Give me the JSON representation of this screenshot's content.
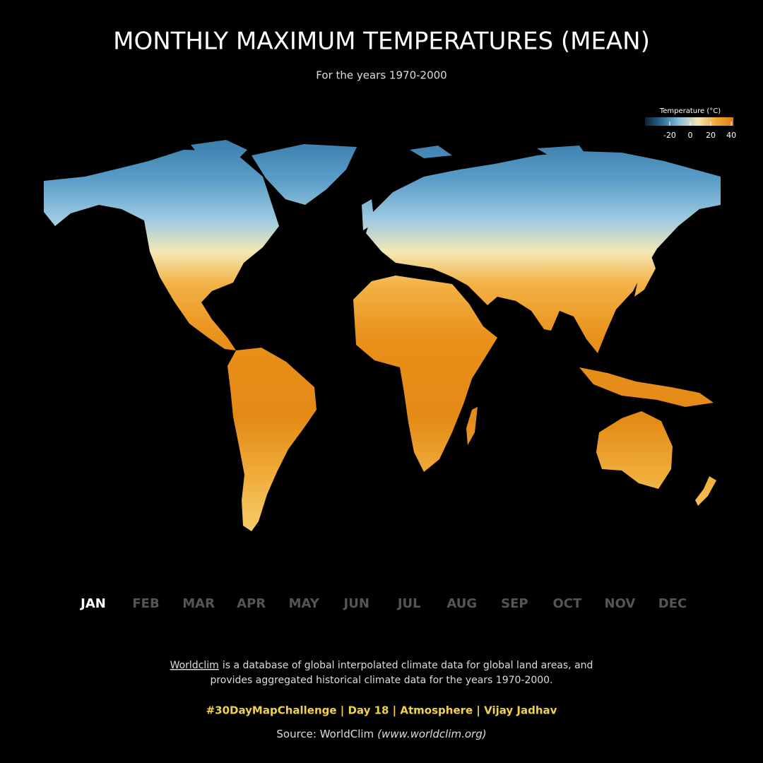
{
  "header": {
    "title": "MONTHLY MAXIMUM TEMPERATURES (MEAN)",
    "subtitle": "For the years 1970-2000"
  },
  "legend": {
    "title": "Temperature (°C)",
    "range": [
      -44,
      42
    ],
    "ticks": [
      -20,
      0,
      20,
      40
    ],
    "colors": [
      "#0b2233",
      "#2f6f9a",
      "#8fc3dd",
      "#f3e6b0",
      "#f2a93a",
      "#e07a10"
    ]
  },
  "months": {
    "items": [
      "JAN",
      "FEB",
      "MAR",
      "APR",
      "MAY",
      "JUN",
      "JUL",
      "AUG",
      "SEP",
      "OCT",
      "NOV",
      "DEC"
    ],
    "selected": 0
  },
  "footer": {
    "link": "Worldclim",
    "description": [
      "is a database of global interpolated climate data for global land areas, and",
      "provides aggregated historical climate data for the years 1970-2000."
    ],
    "credit": "#30DayMapChallenge | Day 18 | Atmosphere | Vijay Jadhav",
    "source": "Source: WorldClim",
    "source_url": "(www.worldclim.org)"
  }
}
